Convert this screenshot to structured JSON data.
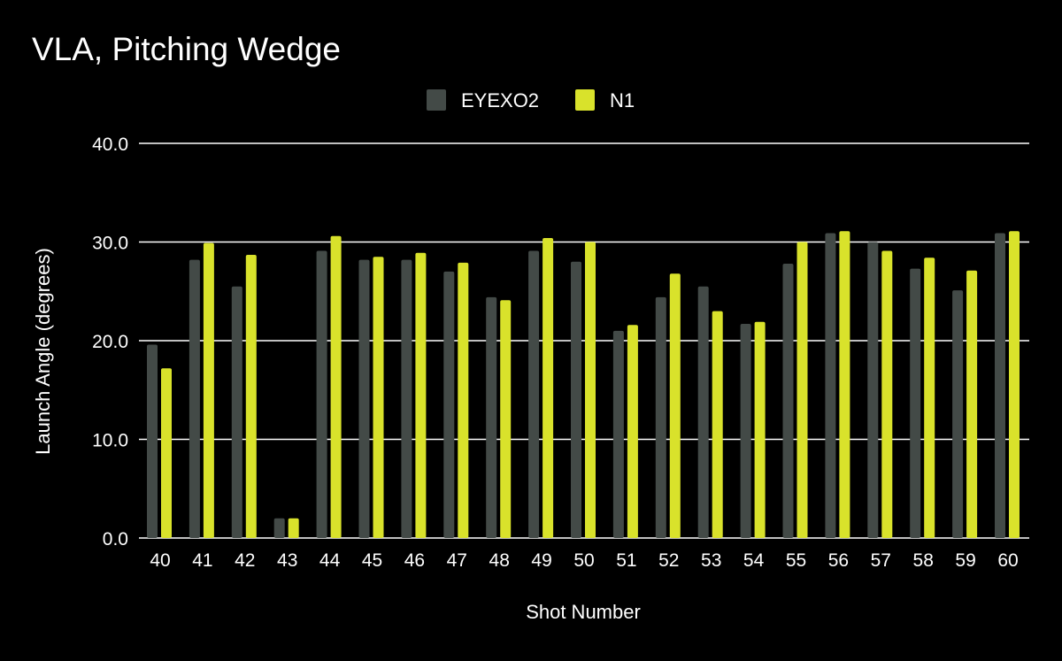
{
  "chart_data": {
    "type": "bar",
    "title": "VLA, Pitching Wedge",
    "xlabel": "Shot Number",
    "ylabel": "Launch Angle (degrees)",
    "ylim": [
      0,
      40
    ],
    "yticks": [
      "0.0",
      "10.0",
      "20.0",
      "30.0",
      "40.0"
    ],
    "grid": true,
    "legend_position": "top-center",
    "background": "#000000",
    "categories": [
      "40",
      "41",
      "42",
      "43",
      "44",
      "45",
      "46",
      "47",
      "48",
      "49",
      "50",
      "51",
      "52",
      "53",
      "54",
      "55",
      "56",
      "57",
      "58",
      "59",
      "60"
    ],
    "series": [
      {
        "name": "EYEXO2",
        "color": "#434a47",
        "values": [
          19.6,
          28.2,
          25.5,
          2.0,
          29.1,
          28.2,
          28.2,
          27.0,
          24.4,
          29.1,
          28.0,
          21.0,
          24.4,
          25.5,
          21.7,
          27.8,
          30.9,
          30.0,
          27.3,
          25.1,
          30.9
        ]
      },
      {
        "name": "N1",
        "color": "#d9e22b",
        "values": [
          17.2,
          29.9,
          28.7,
          2.0,
          30.6,
          28.5,
          28.9,
          27.9,
          24.1,
          30.4,
          30.0,
          21.6,
          26.8,
          23.0,
          21.9,
          30.0,
          31.1,
          29.1,
          28.4,
          27.1,
          31.1
        ]
      }
    ]
  }
}
